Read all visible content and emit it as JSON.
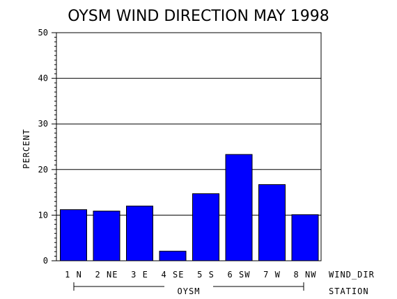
{
  "chart_data": {
    "type": "bar",
    "title": "OYSM WIND DIRECTION MAY 1998",
    "ylabel": "PERCENT",
    "xlabel": "WIND_DIR",
    "group_axis_label": "STATION",
    "group_label": "OYSM",
    "categories": [
      "1 N",
      "2 NE",
      "3 E",
      "4 SE",
      "5 S",
      "6 SW",
      "7 W",
      "8 NW"
    ],
    "values": [
      11.2,
      10.9,
      12.0,
      2.1,
      14.7,
      23.3,
      16.7,
      10.1
    ],
    "ylim": [
      0,
      50
    ],
    "yticks": [
      "0",
      "10",
      "20",
      "30",
      "40",
      "50"
    ],
    "grid": true,
    "bar_color": "#0000ff"
  }
}
